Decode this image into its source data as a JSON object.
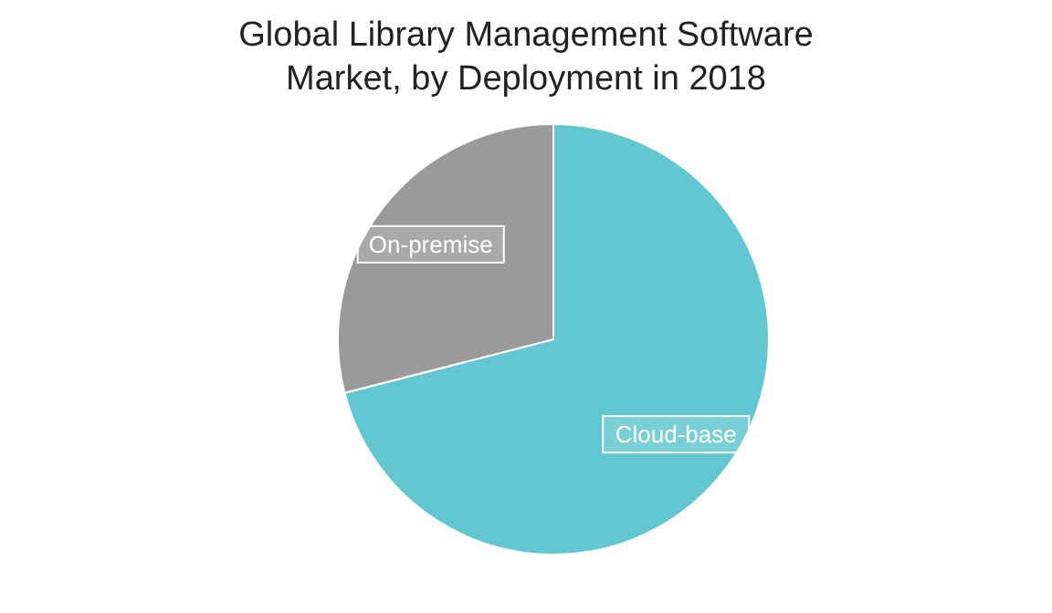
{
  "chart_data": {
    "type": "pie",
    "title": "Global Library Management Software Market, by Deployment in 2018",
    "categories": [
      "Cloud-base",
      "On-premise"
    ],
    "values": [
      71,
      29
    ],
    "colors": [
      "#63c7d1",
      "#9a9a9a"
    ],
    "legend": false
  }
}
